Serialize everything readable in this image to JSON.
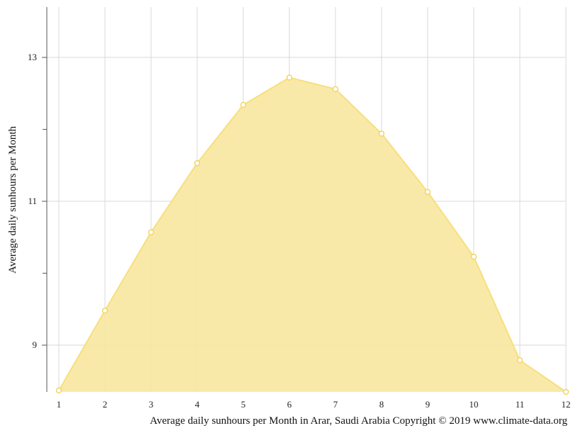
{
  "chart_data": {
    "type": "area",
    "title": "",
    "xlabel": "Average daily sunhours per Month in Arar, Saudi Arabia Copyright © 2019 www.climate-data.org",
    "ylabel": "Average daily sunhours per Month",
    "x": [
      1,
      2,
      3,
      4,
      5,
      6,
      7,
      8,
      9,
      10,
      11,
      12
    ],
    "xticks": [
      "1",
      "2",
      "3",
      "4",
      "5",
      "6",
      "7",
      "8",
      "9",
      "10",
      "11",
      "12"
    ],
    "yticks": [
      9,
      11,
      13
    ],
    "yticks_minor": [
      10,
      12
    ],
    "ylim": [
      8.35,
      13.7
    ],
    "xlim": [
      1,
      12
    ],
    "grid": true,
    "series": [
      {
        "values": [
          8.37,
          9.48,
          10.57,
          11.53,
          12.34,
          12.72,
          12.56,
          11.94,
          11.13,
          10.23,
          8.79,
          8.35
        ]
      }
    ],
    "colors": {
      "fill": "#f8e7a0",
      "line": "#f7df7b",
      "marker": "#f2d35a",
      "grid": "#d9d9d9",
      "axis": "#555555"
    }
  }
}
